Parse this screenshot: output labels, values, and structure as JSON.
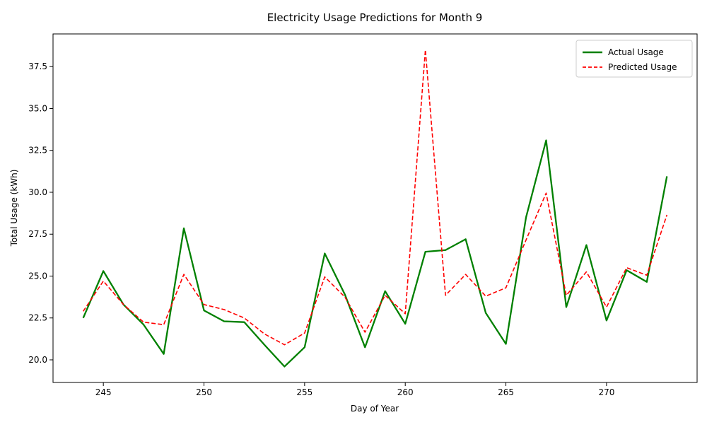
{
  "chart_data": {
    "type": "line",
    "title": "Electricity Usage Predictions for Month 9",
    "xlabel": "Day of Year",
    "ylabel": "Total Usage (kWh)",
    "xlim": [
      242.5,
      274.5
    ],
    "ylim": [
      18.65,
      39.45
    ],
    "grid": false,
    "legend_position": "top-right",
    "x_ticks": [
      245,
      250,
      255,
      260,
      265,
      270
    ],
    "x_tick_labels": [
      "245",
      "250",
      "255",
      "260",
      "265",
      "270"
    ],
    "y_ticks": [
      20.0,
      22.5,
      25.0,
      27.5,
      30.0,
      32.5,
      35.0,
      37.5
    ],
    "y_tick_labels": [
      "20.0",
      "22.5",
      "25.0",
      "27.5",
      "30.0",
      "32.5",
      "35.0",
      "37.5"
    ],
    "x": [
      244,
      245,
      246,
      247,
      248,
      249,
      250,
      251,
      252,
      253,
      254,
      255,
      256,
      257,
      258,
      259,
      260,
      261,
      262,
      263,
      264,
      265,
      266,
      267,
      268,
      269,
      270,
      271,
      272,
      273
    ],
    "series": [
      {
        "name": "Actual Usage",
        "color": "#008000",
        "line_style": "solid",
        "values": [
          22.5,
          25.3,
          23.3,
          22.1,
          20.35,
          27.85,
          22.95,
          22.3,
          22.25,
          20.9,
          19.6,
          20.75,
          26.35,
          23.9,
          20.75,
          24.1,
          22.15,
          26.45,
          26.55,
          27.2,
          22.8,
          20.95,
          28.5,
          33.1,
          23.15,
          26.85,
          22.35,
          25.35,
          24.65,
          30.95
        ]
      },
      {
        "name": "Predicted Usage",
        "color": "#ff0000",
        "line_style": "dashed",
        "values": [
          22.9,
          24.7,
          23.3,
          22.25,
          22.1,
          25.1,
          23.3,
          23.0,
          22.5,
          21.55,
          20.9,
          21.6,
          24.95,
          23.75,
          21.65,
          23.85,
          22.75,
          38.5,
          23.85,
          25.1,
          23.8,
          24.3,
          27.15,
          29.95,
          23.85,
          25.25,
          23.15,
          25.5,
          25.05,
          28.65
        ]
      }
    ]
  }
}
